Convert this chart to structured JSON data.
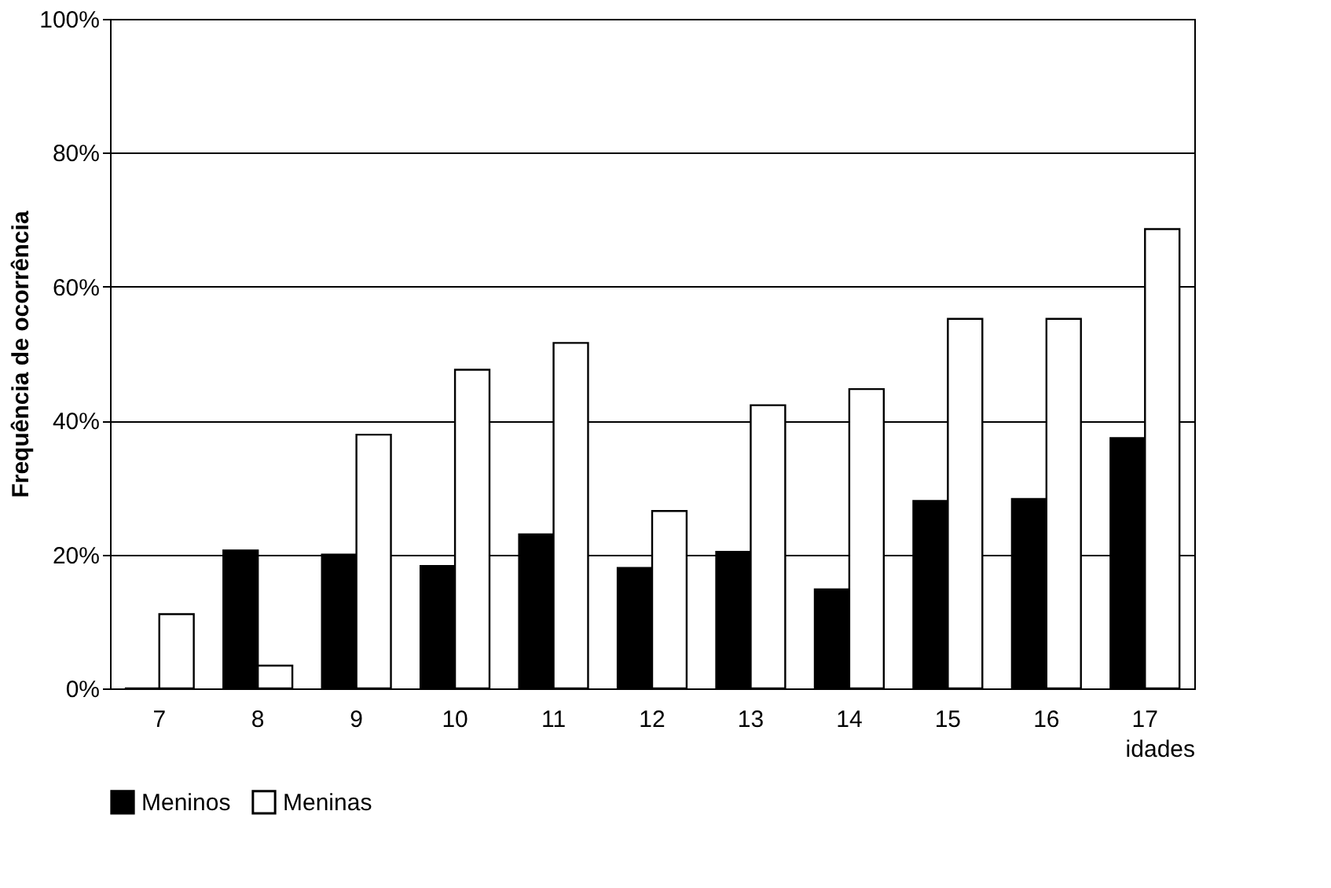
{
  "chart_data": {
    "type": "bar",
    "ylabel": "Frequência de ocorrência",
    "xlabel": "idades",
    "categories": [
      "7",
      "8",
      "9",
      "10",
      "11",
      "12",
      "13",
      "14",
      "15",
      "16",
      "17"
    ],
    "series": [
      {
        "name": "Meninos",
        "color": "#000000",
        "values": [
          0,
          20.6,
          20.0,
          18.3,
          23.0,
          18.0,
          20.4,
          14.8,
          28.0,
          28.3,
          37.4
        ]
      },
      {
        "name": "Meninas",
        "color": "#ffffff",
        "values": [
          11.1,
          3.4,
          37.9,
          47.6,
          51.6,
          26.5,
          42.3,
          44.7,
          55.2,
          55.2,
          68.6
        ]
      }
    ],
    "ylim": [
      0,
      100
    ],
    "yticks": [
      {
        "value": 0,
        "label": "0%"
      },
      {
        "value": 20,
        "label": "20%"
      },
      {
        "value": 40,
        "label": "40%"
      },
      {
        "value": 60,
        "label": "60%"
      },
      {
        "value": 80,
        "label": "80%"
      },
      {
        "value": 100,
        "label": "100%"
      }
    ],
    "grid": "y",
    "legend": "bottom"
  }
}
